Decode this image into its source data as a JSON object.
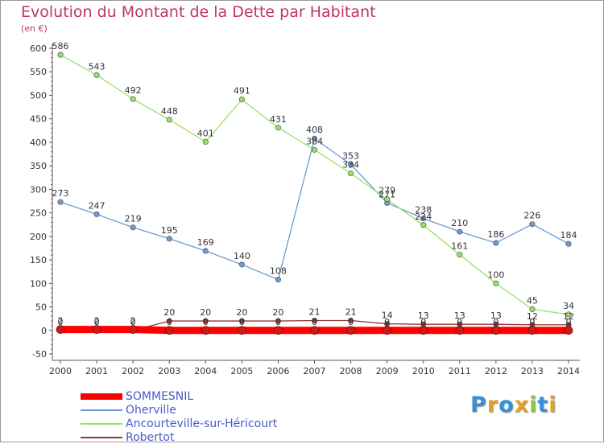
{
  "title": "Evolution du Montant de la Dette par Habitant",
  "subtitle": "(en €)",
  "logo": {
    "letters": [
      {
        "ch": "P",
        "color": "#3a8fd8"
      },
      {
        "ch": "r",
        "color": "#e8a020"
      },
      {
        "ch": "o",
        "color": "#3a8fd8"
      },
      {
        "ch": "x",
        "color": "#e8a020"
      },
      {
        "ch": "i",
        "color": "#8cc63f"
      },
      {
        "ch": "t",
        "color": "#3a8fd8"
      },
      {
        "ch": "i",
        "color": "#e8a020"
      }
    ]
  },
  "chart_data": {
    "type": "line",
    "title": "Evolution du Montant de la Dette par Habitant",
    "subtitle": "(en €)",
    "ylim": [
      -50,
      600
    ],
    "y_ticks": [
      -50,
      0,
      50,
      100,
      150,
      200,
      250,
      300,
      350,
      400,
      450,
      500,
      550,
      600
    ],
    "x": [
      "2000",
      "2001",
      "2002",
      "2003",
      "2004",
      "2005",
      "2006",
      "2007",
      "2008",
      "2009",
      "2010",
      "2011",
      "2012",
      "2013",
      "2014"
    ],
    "grid": false,
    "legend_position": "bottom-left",
    "series": [
      {
        "name": "SOMMESNIL",
        "color": "#ff0000",
        "values": [
          2,
          2,
          2,
          0,
          0,
          0,
          0,
          0,
          0,
          0,
          0,
          0,
          0,
          0,
          0
        ]
      },
      {
        "name": "Oherville",
        "color": "#6b9bd1",
        "values": [
          273,
          247,
          219,
          195,
          169,
          140,
          108,
          408,
          353,
          271,
          238,
          210,
          186,
          226,
          184
        ]
      },
      {
        "name": "Ancourteville-sur-Héricourt",
        "color": "#99e266",
        "values": [
          586,
          543,
          492,
          448,
          401,
          491,
          431,
          384,
          334,
          279,
          224,
          161,
          100,
          45,
          34
        ]
      },
      {
        "name": "Robertot",
        "color": "#8b3a3a",
        "values": [
          0,
          0,
          0,
          20,
          20,
          20,
          20,
          21,
          21,
          14,
          13,
          13,
          13,
          12,
          12
        ]
      }
    ]
  }
}
